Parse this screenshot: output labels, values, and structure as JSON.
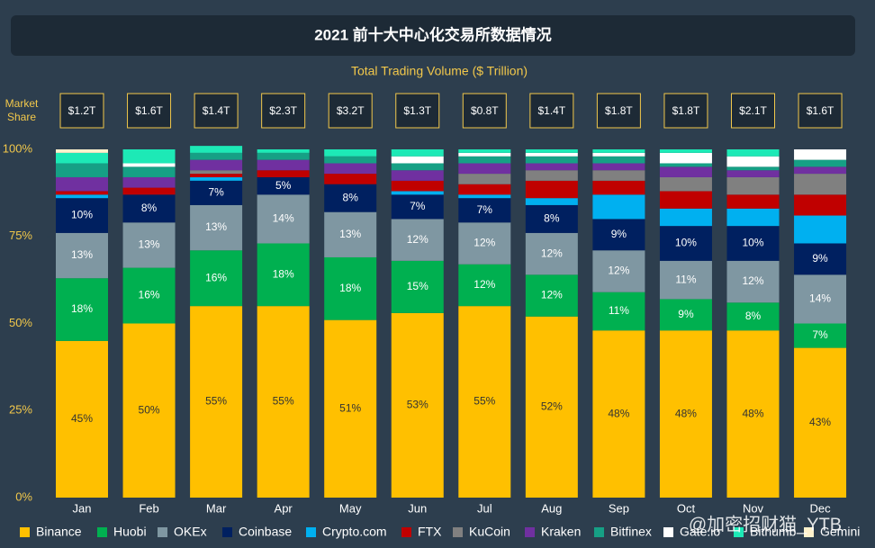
{
  "chart_data": {
    "type": "stacked_bar",
    "title": "2021 前十大中心化交易所数据情况",
    "subtitle": "Total Trading Volume ($ Trillion)",
    "y_label": "Market Share",
    "watermark": "@加密招财猫_YTB",
    "categories": [
      "Jan",
      "Feb",
      "Mar",
      "Apr",
      "May",
      "Jun",
      "Jul",
      "Aug",
      "Sep",
      "Oct",
      "Nov",
      "Dec"
    ],
    "total_volume": {
      "values": [
        1.2,
        1.6,
        1.4,
        2.3,
        3.2,
        1.3,
        0.8,
        1.4,
        1.8,
        1.8,
        2.1,
        1.6
      ],
      "value_labels": [
        "$1.2T",
        "$1.6T",
        "$1.4T",
        "$2.3T",
        "$3.2T",
        "$1.3T",
        "$0.8T",
        "$1.4T",
        "$1.8T",
        "$1.8T",
        "$2.1T",
        "$1.6T"
      ]
    },
    "ylim": [
      0,
      100
    ],
    "yticks": [
      {
        "value": 0,
        "label": "0%"
      },
      {
        "value": 25,
        "label": "25%"
      },
      {
        "value": 50,
        "label": "50%"
      },
      {
        "value": 75,
        "label": "75%"
      },
      {
        "value": 100,
        "label": "100%"
      }
    ],
    "grid": false,
    "legend": "bottom",
    "series": [
      {
        "name": "Binance",
        "color": "#ffc000",
        "values": [
          45,
          50,
          55,
          55,
          51,
          53,
          55,
          52,
          48,
          48,
          48,
          43
        ],
        "value_labels": [
          "45%",
          "50%",
          "55%",
          "55%",
          "51%",
          "53%",
          "55%",
          "52%",
          "48%",
          "48%",
          "48%",
          "43%"
        ]
      },
      {
        "name": "Huobi",
        "color": "#00b050",
        "values": [
          18,
          16,
          16,
          18,
          18,
          15,
          12,
          12,
          11,
          9,
          8,
          7
        ],
        "value_labels": [
          "18%",
          "16%",
          "16%",
          "18%",
          "18%",
          "15%",
          "12%",
          "12%",
          "11%",
          "9%",
          "8%",
          "7%"
        ]
      },
      {
        "name": "OKEx",
        "color": "#7f97a2",
        "values": [
          13,
          13,
          13,
          14,
          13,
          12,
          12,
          12,
          12,
          11,
          12,
          14
        ],
        "value_labels": [
          "13%",
          "13%",
          "13%",
          "14%",
          "13%",
          "12%",
          "12%",
          "12%",
          "12%",
          "11%",
          "12%",
          "14%"
        ]
      },
      {
        "name": "Coinbase",
        "color": "#002060",
        "values": [
          10,
          8,
          7,
          5,
          8,
          7,
          7,
          8,
          9,
          10,
          10,
          9
        ],
        "value_labels": [
          "10%",
          "8%",
          "7%",
          "5%",
          "8%",
          "7%",
          "7%",
          "8%",
          "9%",
          "10%",
          "10%",
          "9%"
        ]
      },
      {
        "name": "Crypto.com",
        "color": "#00b0f0",
        "values": [
          1,
          0,
          1,
          0,
          0,
          1,
          1,
          2,
          7,
          5,
          5,
          8
        ]
      },
      {
        "name": "FTX",
        "color": "#c00000",
        "values": [
          1,
          2,
          1,
          2,
          3,
          3,
          3,
          5,
          4,
          5,
          4,
          6
        ]
      },
      {
        "name": "KuCoin",
        "color": "#808080",
        "values": [
          0,
          0,
          1,
          0,
          0,
          0,
          3,
          3,
          3,
          4,
          5,
          6
        ]
      },
      {
        "name": "Kraken",
        "color": "#7030a0",
        "values": [
          4,
          3,
          3,
          3,
          3,
          3,
          3,
          2,
          2,
          3,
          2,
          2
        ]
      },
      {
        "name": "Bitfinex",
        "color": "#16a085",
        "values": [
          4,
          3,
          2,
          2,
          2,
          2,
          2,
          2,
          2,
          1,
          1,
          2
        ]
      },
      {
        "name": "Gate.io",
        "color": "#ffffff",
        "values": [
          0,
          1,
          0,
          0,
          0,
          2,
          1,
          1,
          1,
          3,
          3,
          3
        ]
      },
      {
        "name": "Bithumb",
        "color": "#1de9b6",
        "values": [
          3,
          4,
          2,
          1,
          2,
          2,
          1,
          1,
          1,
          1,
          2,
          0
        ]
      },
      {
        "name": "Gemini",
        "color": "#fff2cc",
        "values": [
          1,
          0,
          0,
          0,
          0,
          0,
          0,
          0,
          0,
          0,
          0,
          0
        ]
      }
    ]
  }
}
